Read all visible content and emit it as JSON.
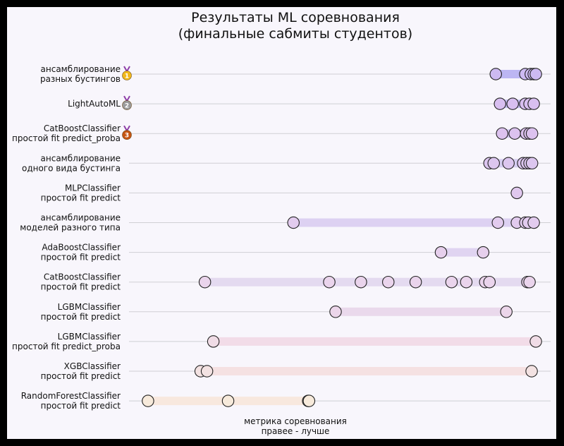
{
  "chart_data": {
    "type": "scatter",
    "title": [
      "Результаты ML соревнования",
      "(финальные сабмиты студентов)"
    ],
    "xlabel": [
      "метрика соревнования",
      "правее - лучше"
    ],
    "ylabel": "",
    "xlim": [
      0,
      100
    ],
    "grid": "horizontal",
    "rows": [
      {
        "label": [
          "ансамблирование",
          "разных бустингов"
        ],
        "medal": "1",
        "medal_color": "#f1b81c",
        "color": "#cdbaf2",
        "band": "#bcb6f3",
        "values": [
          87.0,
          94.0,
          95.3,
          96.0,
          96.5
        ]
      },
      {
        "label": [
          "LightAutoML"
        ],
        "medal": "2",
        "medal_color": "#9a9a9a",
        "color": "#d8bff0",
        "band": "#c6c0f3",
        "values": [
          88.0,
          91.0,
          94.0,
          95.0,
          96.0
        ]
      },
      {
        "label": [
          "CatBoostClassifier",
          "простой fit predict_proba"
        ],
        "medal": "3",
        "medal_color": "#c55512",
        "color": "#dcc2ef",
        "band": "#d0c6f1",
        "values": [
          88.5,
          91.5,
          94.2,
          95.0,
          95.6
        ]
      },
      {
        "label": [
          "ансамблирование",
          "одного вида бустинга"
        ],
        "medal": "",
        "medal_color": "",
        "color": "#dcc6ef",
        "band": "#d6cdf1",
        "values": [
          85.5,
          86.5,
          90.0,
          93.5,
          94.3,
          95.0,
          95.6
        ]
      },
      {
        "label": [
          "MLPClassifier",
          "простой fit predict"
        ],
        "medal": "",
        "medal_color": "",
        "color": "#e0c8ee",
        "band": "#dcd2f1",
        "values": [
          92.0
        ]
      },
      {
        "label": [
          "ансамблирование",
          "моделей разного типа"
        ],
        "medal": "",
        "medal_color": "",
        "color": "#e2cbee",
        "band": "#ddd1f2",
        "values": [
          39.0,
          87.5,
          92.0,
          94.0,
          94.7,
          96.0
        ]
      },
      {
        "label": [
          "AdaBoostClassifier",
          "простой fit predict"
        ],
        "medal": "",
        "medal_color": "",
        "color": "#e6cfec",
        "band": "#e0d4f1",
        "values": [
          74.0,
          84.0
        ]
      },
      {
        "label": [
          "CatBoostClassifier",
          "простой fit predict"
        ],
        "medal": "",
        "medal_color": "",
        "color": "#ead4ec",
        "band": "#e4daf0",
        "values": [
          18.0,
          47.5,
          55.0,
          61.5,
          68.0,
          76.5,
          80.0,
          84.5,
          85.5,
          94.5,
          95.0
        ]
      },
      {
        "label": [
          "LGBMClassifier",
          "простой fit predict"
        ],
        "medal": "",
        "medal_color": "",
        "color": "#ecd6ea",
        "band": "#ead9ec",
        "values": [
          49.0,
          89.5
        ]
      },
      {
        "label": [
          "LGBMClassifier",
          "простой fit predict_proba"
        ],
        "medal": "",
        "medal_color": "",
        "color": "#f0dce6",
        "band": "#f2dce8",
        "values": [
          20.0,
          96.5
        ]
      },
      {
        "label": [
          "XGBClassifier",
          "простой fit predict"
        ],
        "medal": "",
        "medal_color": "",
        "color": "#f3e2e2",
        "band": "#f5e1e2",
        "values": [
          17.0,
          18.5,
          95.5
        ]
      },
      {
        "label": [
          "RandomForestClassifier",
          "простой fit predict"
        ],
        "medal": "",
        "medal_color": "",
        "color": "#f7eadb",
        "band": "#f8e8de",
        "values": [
          4.5,
          23.5,
          42.5,
          42.7
        ]
      }
    ]
  }
}
